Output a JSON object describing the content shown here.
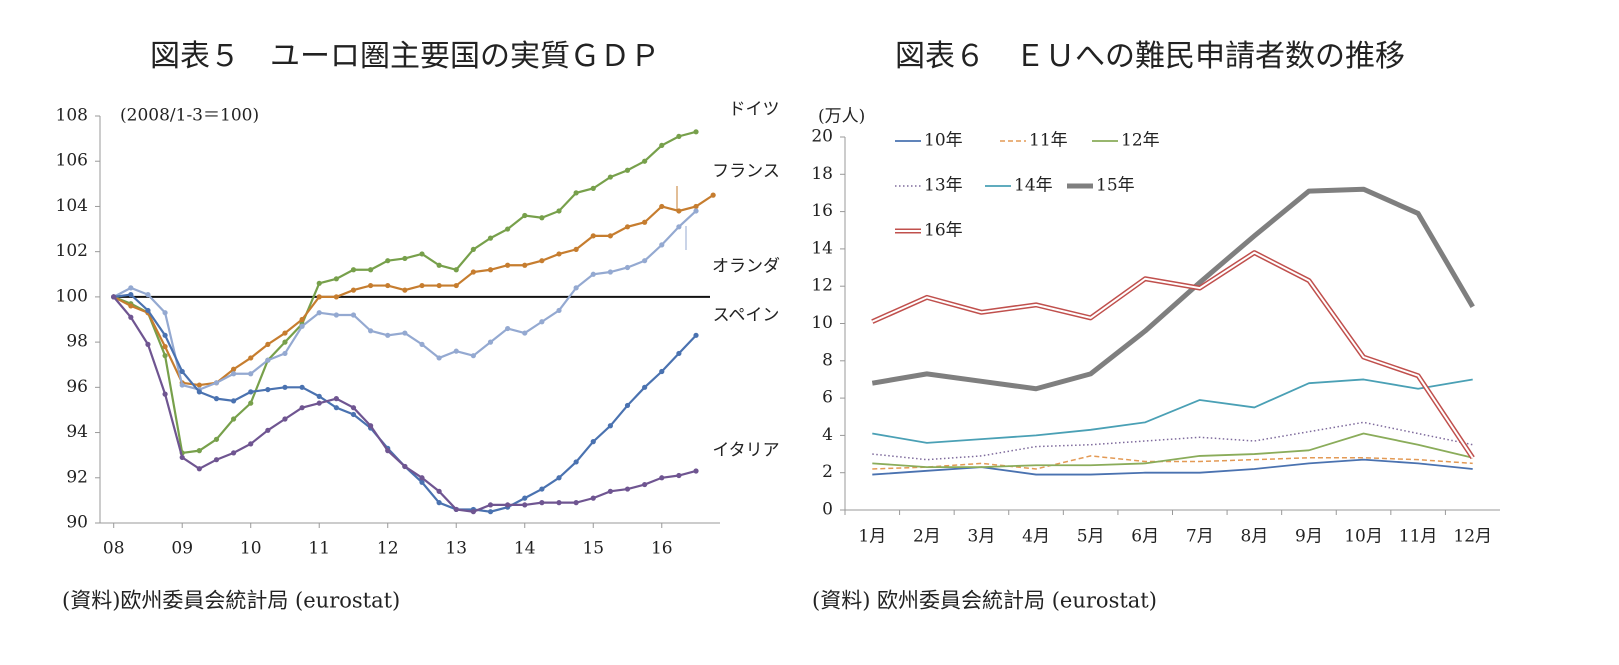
{
  "chart_data": [
    {
      "type": "line",
      "title": "図表５　ユーロ圏主要国の実質ＧＤＰ",
      "annotation": "(2008/1-3＝100)",
      "source": "(資料)欧州委員会統計局 (eurostat)",
      "x": [
        8,
        8.25,
        8.5,
        8.75,
        9,
        9.25,
        9.5,
        9.75,
        10,
        10.25,
        10.5,
        10.75,
        11,
        11.25,
        11.5,
        11.75,
        12,
        12.25,
        12.5,
        12.75,
        13,
        13.25,
        13.5,
        13.75,
        14,
        14.25,
        14.5,
        14.75,
        15,
        15.25,
        15.5,
        15.75,
        16,
        16.25,
        16.5,
        16.75
      ],
      "xlim": [
        7.8,
        16.85
      ],
      "xticks": [
        {
          "value": 8,
          "label": "08"
        },
        {
          "value": 9,
          "label": "09"
        },
        10,
        11,
        12,
        13,
        14,
        15,
        16
      ],
      "ylim": [
        90,
        108
      ],
      "yticks": [
        90,
        92,
        94,
        96,
        98,
        100,
        102,
        104,
        106,
        108
      ],
      "hline": 100,
      "series": [
        {
          "name": "ドイツ",
          "color": "#77a04b",
          "values": [
            100,
            99.7,
            99.3,
            97.4,
            93.1,
            93.2,
            93.7,
            94.6,
            95.3,
            97.2,
            98.0,
            98.8,
            100.6,
            100.8,
            101.2,
            101.2,
            101.6,
            101.7,
            101.9,
            101.4,
            101.2,
            102.1,
            102.6,
            103.0,
            103.6,
            103.5,
            103.8,
            104.6,
            104.8,
            105.3,
            105.6,
            106.0,
            106.7,
            107.1,
            107.3,
            null
          ]
        },
        {
          "name": "フランス",
          "color": "#c67d2f",
          "values": [
            100,
            99.6,
            99.3,
            97.8,
            96.2,
            96.1,
            96.2,
            96.8,
            97.3,
            97.9,
            98.4,
            99.0,
            100.0,
            100.0,
            100.3,
            100.5,
            100.5,
            100.3,
            100.5,
            100.5,
            100.5,
            101.1,
            101.2,
            101.4,
            101.4,
            101.6,
            101.9,
            102.1,
            102.7,
            102.7,
            103.1,
            103.3,
            104.0,
            103.8,
            104.0,
            104.5
          ]
        },
        {
          "name": "オランダ",
          "color": "#94a9d1",
          "values": [
            100,
            100.4,
            100.1,
            99.3,
            96.1,
            95.9,
            96.2,
            96.6,
            96.6,
            97.2,
            97.5,
            98.7,
            99.3,
            99.2,
            99.2,
            98.5,
            98.3,
            98.4,
            97.9,
            97.3,
            97.6,
            97.4,
            98.0,
            98.6,
            98.4,
            98.9,
            99.4,
            100.4,
            101.0,
            101.1,
            101.3,
            101.6,
            102.3,
            103.1,
            103.8,
            null
          ]
        },
        {
          "name": "スペイン",
          "color": "#4a72b0",
          "values": [
            100,
            100.1,
            99.4,
            98.3,
            96.7,
            95.8,
            95.5,
            95.4,
            95.8,
            95.9,
            96.0,
            96.0,
            95.6,
            95.1,
            94.8,
            94.2,
            93.3,
            92.5,
            91.8,
            90.9,
            90.6,
            90.6,
            90.5,
            90.7,
            91.1,
            91.5,
            92.0,
            92.7,
            93.6,
            94.3,
            95.2,
            96.0,
            96.7,
            97.5,
            98.3,
            null
          ]
        },
        {
          "name": "イタリア",
          "color": "#6f5591",
          "values": [
            100,
            99.1,
            97.9,
            95.7,
            92.9,
            92.4,
            92.8,
            93.1,
            93.5,
            94.1,
            94.6,
            95.1,
            95.3,
            95.5,
            95.1,
            94.3,
            93.2,
            92.5,
            92.0,
            91.4,
            90.6,
            90.5,
            90.8,
            90.8,
            90.8,
            90.9,
            90.9,
            90.9,
            91.1,
            91.4,
            91.5,
            91.7,
            92.0,
            92.1,
            92.3,
            null
          ]
        }
      ]
    },
    {
      "type": "line",
      "title": "図表６　ＥＵへの難民申請者数の推移",
      "y_label": "(万人)",
      "source": "(資料) 欧州委員会統計局 (eurostat)",
      "categories": [
        "1月",
        "2月",
        "3月",
        "4月",
        "5月",
        "6月",
        "7月",
        "8月",
        "9月",
        "10月",
        "11月",
        "12月"
      ],
      "ylim": [
        0,
        20
      ],
      "yticks": [
        0,
        2,
        4,
        6,
        8,
        10,
        12,
        14,
        16,
        18,
        20
      ],
      "series": [
        {
          "name": "10年",
          "color": "#4a72b0",
          "style": "solid",
          "values": [
            1.9,
            2.1,
            2.3,
            1.9,
            1.9,
            2.0,
            2.0,
            2.2,
            2.5,
            2.7,
            2.5,
            2.2
          ]
        },
        {
          "name": "11年",
          "color": "#e39a55",
          "style": "dashed",
          "values": [
            2.2,
            2.3,
            2.5,
            2.2,
            2.9,
            2.6,
            2.6,
            2.7,
            2.8,
            2.8,
            2.7,
            2.5
          ]
        },
        {
          "name": "12年",
          "color": "#8aac5a",
          "style": "solid",
          "values": [
            2.5,
            2.3,
            2.3,
            2.4,
            2.4,
            2.5,
            2.9,
            3.0,
            3.2,
            4.1,
            3.5,
            2.8
          ]
        },
        {
          "name": "13年",
          "color": "#7e6a9c",
          "style": "dotted",
          "values": [
            3.0,
            2.7,
            2.9,
            3.4,
            3.5,
            3.7,
            3.9,
            3.7,
            4.2,
            4.7,
            4.1,
            3.5
          ]
        },
        {
          "name": "14年",
          "color": "#4aa0b5",
          "style": "solid",
          "values": [
            4.1,
            3.6,
            3.8,
            4.0,
            4.3,
            4.7,
            5.9,
            5.5,
            6.8,
            7.0,
            6.5,
            7.0
          ]
        },
        {
          "name": "15年",
          "color": "#7f7f7f",
          "style": "thick",
          "values": [
            6.8,
            7.3,
            6.9,
            6.5,
            7.3,
            9.6,
            12.2,
            14.7,
            17.1,
            17.2,
            15.9,
            10.9
          ]
        },
        {
          "name": "16年",
          "color": "#c0504d",
          "style": "double",
          "values": [
            10.1,
            11.4,
            10.6,
            11.0,
            10.3,
            12.4,
            11.9,
            13.8,
            12.3,
            8.2,
            7.2,
            2.8
          ]
        }
      ]
    }
  ]
}
